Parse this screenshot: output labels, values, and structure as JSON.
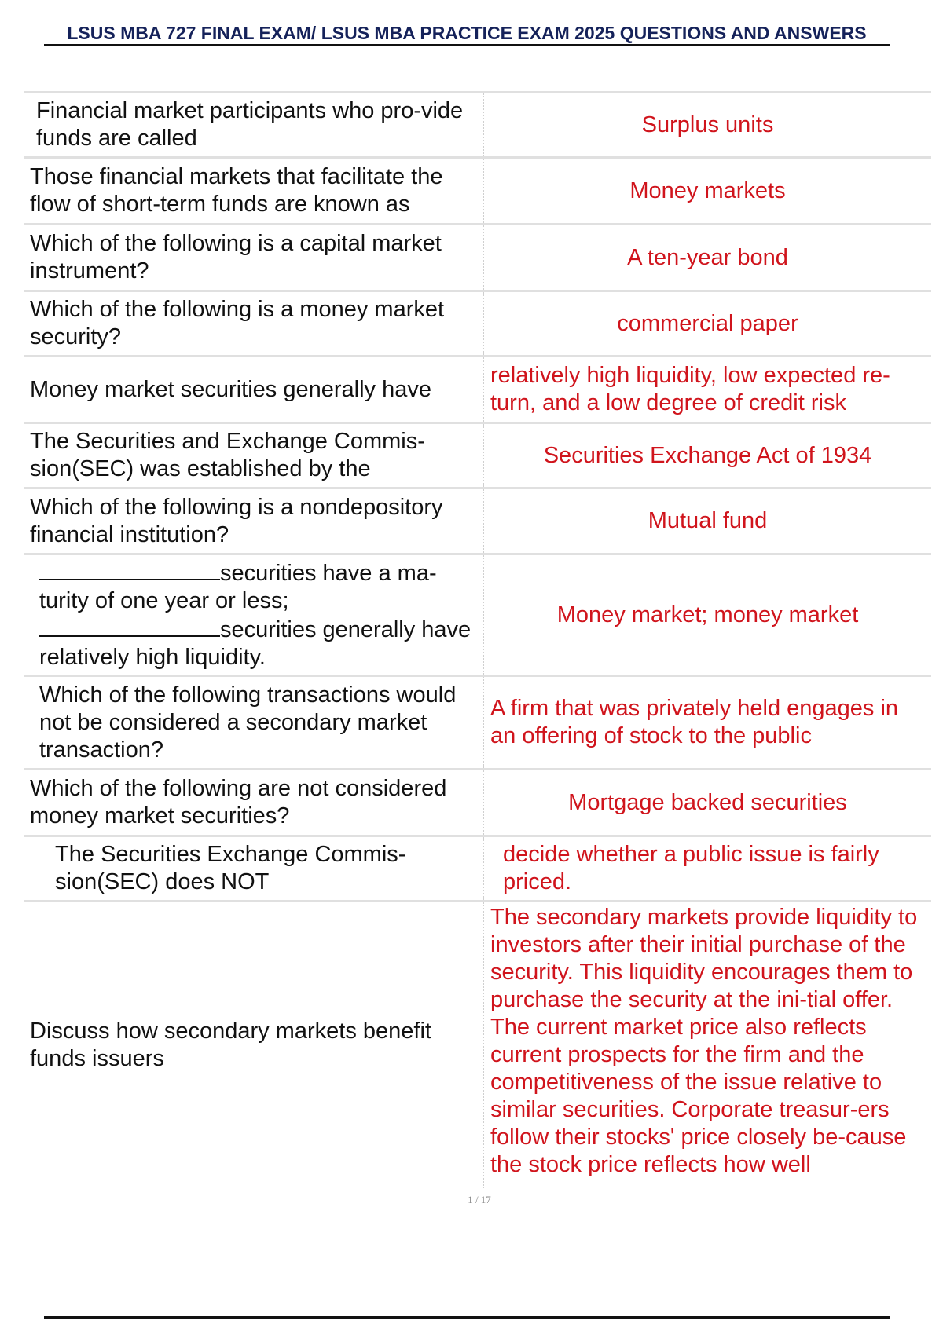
{
  "title": "LSUS MBA 727 FINAL EXAM/ LSUS MBA PRACTICE EXAM 2025 QUESTIONS AND ANSWERS",
  "rows": [
    {
      "q": "Financial market participants who pro-vide funds are called",
      "a": "Surplus units"
    },
    {
      "q": "Those financial markets that facilitate the flow of short-term funds are known as",
      "a": "Money markets"
    },
    {
      "q": "Which of the following is a capital market instrument?",
      "a": "A ten-year bond"
    },
    {
      "q": "Which of the following is a money market security?",
      "a": "commercial paper"
    },
    {
      "q": "Money market securities generally have",
      "a": "relatively high liquidity, low expected re-turn, and a low degree of credit risk"
    },
    {
      "q": "The Securities and Exchange Commis-sion(SEC) was established by the",
      "a": "Securities Exchange Act of 1934"
    },
    {
      "q": "Which of the following is a nondepository financial institution?",
      "a": "Mutual fund"
    },
    {
      "q1": "securities have a ma-turity of one year or less;",
      "q2": "securities generally have relatively high liquidity.",
      "a": "Money market; money market"
    },
    {
      "q": "Which of the following transactions would not be considered a secondary market transaction?",
      "a": "A firm that was privately held engages in an offering of stock to the public"
    },
    {
      "q": "Which of the following are not considered money market securities?",
      "a": "Mortgage backed securities"
    },
    {
      "q": "The Securities Exchange Commis-sion(SEC) does NOT",
      "a": "decide whether a public issue is fairly priced."
    },
    {
      "q": "Discuss how secondary markets benefit funds issuers",
      "a": "The secondary markets provide liquidity to investors after their initial purchase of the security. This liquidity encourages them to purchase the security at the ini-tial offer. The current market price also reflects current prospects for the firm and the competitiveness of the issue relative to similar securities. Corporate treasur-ers follow their stocks' price closely be-cause the stock price reflects how well"
    }
  ],
  "page_number": "1 / 17",
  "colors": {
    "title": "#15225a",
    "answer": "#d0141c"
  }
}
